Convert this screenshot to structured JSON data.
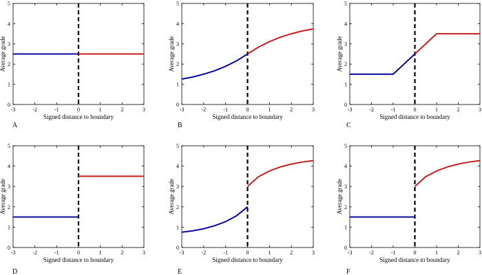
{
  "chart_data": [
    {
      "type": "line",
      "panel_label": "A",
      "xlabel": "Signed distance to boundary",
      "ylabel": "Average grade",
      "xlim": [
        -3,
        3
      ],
      "ylim": [
        0,
        5
      ],
      "xticks": [
        -3,
        -2,
        -1,
        0,
        1,
        2,
        3
      ],
      "yticks": [
        0,
        1,
        2,
        3,
        4,
        5
      ],
      "boundary_x": 0,
      "series": [
        {
          "color": "#0a0a9a",
          "x": [
            -3,
            0
          ],
          "y": [
            2.5,
            2.5
          ]
        },
        {
          "color": "#c81e1e",
          "x": [
            0,
            3
          ],
          "y": [
            2.5,
            2.5
          ]
        }
      ]
    },
    {
      "type": "line",
      "panel_label": "B",
      "xlabel": "Signed distance to boundary",
      "ylabel": "Average grade",
      "xlim": [
        -3,
        3
      ],
      "ylim": [
        0,
        5
      ],
      "xticks": [
        -3,
        -2,
        -1,
        0,
        1,
        2,
        3
      ],
      "yticks": [
        0,
        1,
        2,
        3,
        4,
        5
      ],
      "boundary_x": 0,
      "series": [
        {
          "color": "#0a0a9a",
          "x": [
            -3,
            -2.5,
            -2,
            -1.5,
            -1,
            -0.5,
            0
          ],
          "y": [
            1.26,
            1.36,
            1.5,
            1.67,
            1.89,
            2.16,
            2.5
          ]
        },
        {
          "color": "#c81e1e",
          "x": [
            0,
            0.5,
            1,
            1.5,
            2,
            2.5,
            3
          ],
          "y": [
            2.5,
            2.84,
            3.11,
            3.33,
            3.5,
            3.64,
            3.74
          ]
        }
      ]
    },
    {
      "type": "line",
      "panel_label": "C",
      "xlabel": "Signed distance to boundary",
      "ylabel": "Average grade",
      "xlim": [
        -3,
        3
      ],
      "ylim": [
        0,
        5
      ],
      "xticks": [
        -3,
        -2,
        -1,
        0,
        1,
        2,
        3
      ],
      "yticks": [
        0,
        1,
        2,
        3,
        4,
        5
      ],
      "boundary_x": 0,
      "series": [
        {
          "color": "#0a0a9a",
          "x": [
            -3,
            -1,
            0
          ],
          "y": [
            1.5,
            1.5,
            2.5
          ]
        },
        {
          "color": "#c81e1e",
          "x": [
            0,
            1,
            3
          ],
          "y": [
            2.5,
            3.5,
            3.5
          ]
        }
      ]
    },
    {
      "type": "line",
      "panel_label": "D",
      "xlabel": "Signed distance to boundary",
      "ylabel": "Average grade",
      "xlim": [
        -3,
        3
      ],
      "ylim": [
        0,
        5
      ],
      "xticks": [
        -3,
        -2,
        -1,
        0,
        1,
        2,
        3
      ],
      "yticks": [
        0,
        1,
        2,
        3,
        4,
        5
      ],
      "boundary_x": 0,
      "series": [
        {
          "color": "#0a0a9a",
          "x": [
            -3,
            0
          ],
          "y": [
            1.5,
            1.5
          ]
        },
        {
          "color": "#c81e1e",
          "x": [
            0,
            3
          ],
          "y": [
            3.5,
            3.5
          ]
        }
      ]
    },
    {
      "type": "line",
      "panel_label": "E",
      "xlabel": "Signed distance to boundary",
      "ylabel": "Average grade",
      "xlim": [
        -3,
        3
      ],
      "ylim": [
        0,
        5
      ],
      "xticks": [
        -3,
        -2,
        -1,
        0,
        1,
        2,
        3
      ],
      "yticks": [
        0,
        1,
        2,
        3,
        4,
        5
      ],
      "boundary_x": 0,
      "series": [
        {
          "color": "#0a0a9a",
          "x": [
            -3,
            -2.5,
            -2,
            -1.5,
            -1,
            -0.5,
            0
          ],
          "y": [
            0.75,
            0.82,
            0.92,
            1.07,
            1.27,
            1.56,
            2.0
          ]
        },
        {
          "color": "#c81e1e",
          "x": [
            0,
            0.5,
            1,
            1.5,
            2,
            2.5,
            3
          ],
          "y": [
            3.0,
            3.48,
            3.76,
            3.96,
            4.1,
            4.2,
            4.27
          ]
        }
      ]
    },
    {
      "type": "line",
      "panel_label": "F",
      "xlabel": "Signed distance to boundary",
      "ylabel": "Average grade",
      "xlim": [
        -3,
        3
      ],
      "ylim": [
        0,
        5
      ],
      "xticks": [
        -3,
        -2,
        -1,
        0,
        1,
        2,
        3
      ],
      "yticks": [
        0,
        1,
        2,
        3,
        4,
        5
      ],
      "boundary_x": 0,
      "series": [
        {
          "color": "#0a0a9a",
          "x": [
            -3,
            0
          ],
          "y": [
            1.5,
            1.5
          ]
        },
        {
          "color": "#c81e1e",
          "x": [
            0,
            0.5,
            1,
            1.5,
            2,
            2.5,
            3
          ],
          "y": [
            3.0,
            3.48,
            3.76,
            3.96,
            4.1,
            4.2,
            4.27
          ]
        }
      ]
    }
  ]
}
